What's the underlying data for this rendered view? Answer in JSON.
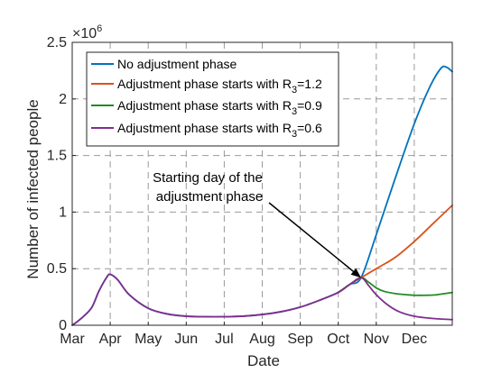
{
  "chart_data": {
    "type": "line",
    "xlabel": "Date",
    "ylabel": "Number of infected people",
    "exponent_label": "×10",
    "exponent_power": "6",
    "x_ticks": [
      "Mar",
      "Apr",
      "May",
      "Jun",
      "Jul",
      "Aug",
      "Sep",
      "Oct",
      "Nov",
      "Dec"
    ],
    "x_range": [
      "Mar",
      "end of Dec"
    ],
    "y_ticks": [
      "0",
      "0.5",
      "1",
      "1.5",
      "2",
      "2.5"
    ],
    "ylim": [
      0,
      2.5
    ],
    "grid": "dashed",
    "legend_position": "top-left",
    "colors": {
      "no_adjustment": "#0072BD",
      "r12": "#D95319",
      "r09": "#228B22",
      "r06": "#7E2F8E"
    },
    "series": [
      {
        "key": "no_adjustment",
        "name": "No adjustment phase",
        "x": [
          0,
          0.2,
          0.5,
          0.7,
          0.9,
          1.0,
          1.2,
          1.5,
          2,
          2.5,
          3,
          3.5,
          4,
          4.5,
          5,
          5.5,
          6,
          6.5,
          7,
          7.3,
          7.6,
          8,
          8.5,
          9,
          9.4,
          9.7,
          9.85,
          10
        ],
        "y": [
          0,
          0.05,
          0.15,
          0.3,
          0.42,
          0.45,
          0.4,
          0.27,
          0.15,
          0.1,
          0.08,
          0.075,
          0.075,
          0.08,
          0.095,
          0.12,
          0.16,
          0.22,
          0.29,
          0.36,
          0.42,
          0.8,
          1.3,
          1.78,
          2.1,
          2.27,
          2.28,
          2.24
        ]
      },
      {
        "key": "r12",
        "name": "Adjustment phase starts with R",
        "sub": "3",
        "suffix": "=1.2",
        "x": [
          7,
          7.3,
          7.6,
          8,
          8.5,
          9,
          9.5,
          10
        ],
        "y": [
          0.29,
          0.36,
          0.42,
          0.5,
          0.6,
          0.74,
          0.9,
          1.06
        ]
      },
      {
        "key": "r09",
        "name": "Adjustment phase starts with R",
        "sub": "3",
        "suffix": "=0.9",
        "x": [
          7,
          7.3,
          7.6,
          7.8,
          8,
          8.2,
          8.5,
          8.8,
          9,
          9.3,
          9.6,
          10
        ],
        "y": [
          0.29,
          0.36,
          0.42,
          0.38,
          0.33,
          0.3,
          0.28,
          0.27,
          0.265,
          0.265,
          0.27,
          0.29
        ]
      },
      {
        "key": "r06",
        "name": "Adjustment phase starts with R",
        "sub": "3",
        "suffix": "=0.6",
        "x": [
          0,
          0.2,
          0.5,
          0.7,
          0.9,
          1.0,
          1.2,
          1.5,
          2,
          2.5,
          3,
          3.5,
          4,
          4.5,
          5,
          5.5,
          6,
          6.5,
          7,
          7.3,
          7.6,
          7.8,
          8,
          8.3,
          8.6,
          9,
          9.5,
          10
        ],
        "y": [
          0,
          0.05,
          0.15,
          0.3,
          0.42,
          0.45,
          0.4,
          0.27,
          0.15,
          0.1,
          0.08,
          0.075,
          0.075,
          0.08,
          0.095,
          0.12,
          0.16,
          0.22,
          0.29,
          0.36,
          0.42,
          0.35,
          0.27,
          0.18,
          0.12,
          0.08,
          0.06,
          0.05
        ]
      }
    ],
    "annotation": {
      "line1": "Starting day of the",
      "line2": "adjustment phase",
      "target": [
        7.6,
        0.42
      ]
    }
  }
}
